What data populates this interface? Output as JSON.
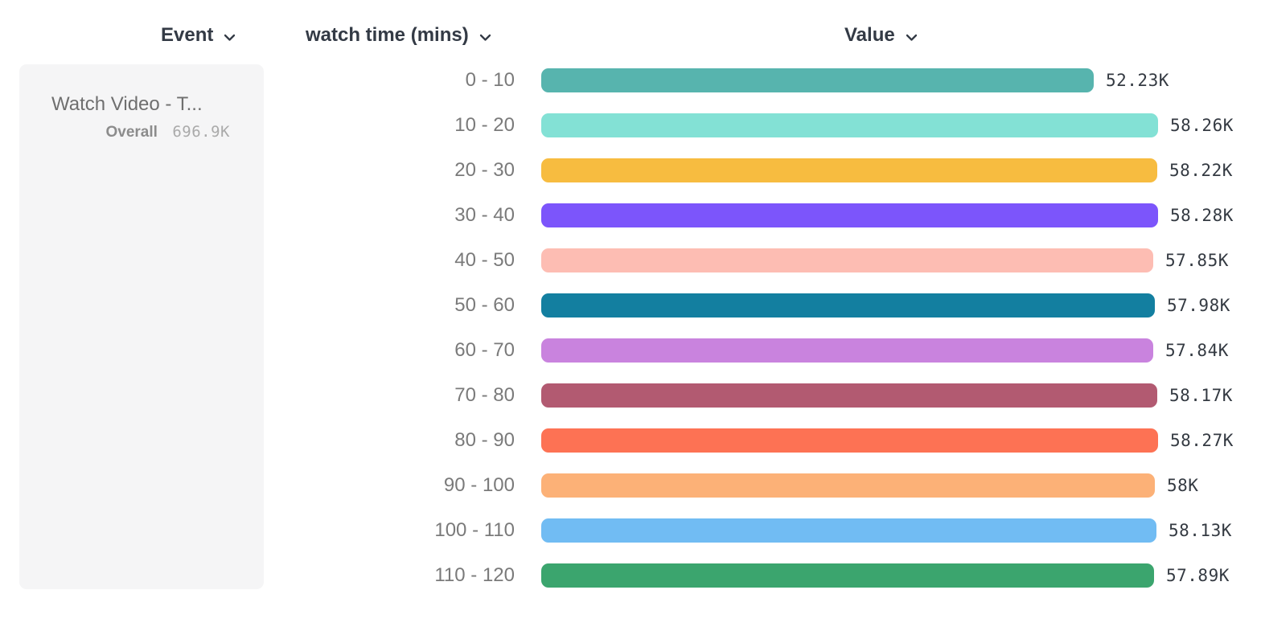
{
  "columns": {
    "event": {
      "label": "Event"
    },
    "breakdown": {
      "label": "watch time (mins)"
    },
    "value": {
      "label": "Value"
    }
  },
  "legend": {
    "event_title": "Watch Video - T...",
    "overall_label": "Overall",
    "overall_value": "696.9K"
  },
  "chart_data": {
    "type": "bar",
    "orientation": "horizontal",
    "title": "",
    "xlabel": "Value",
    "ylabel": "watch time (mins)",
    "categories": [
      "0 - 10",
      "10 - 20",
      "20 - 30",
      "30 - 40",
      "40 - 50",
      "50 - 60",
      "60 - 70",
      "70 - 80",
      "80 - 90",
      "90 - 100",
      "100 - 110",
      "110 - 120"
    ],
    "values": [
      52230,
      58260,
      58220,
      58280,
      57850,
      57980,
      57840,
      58170,
      58270,
      58000,
      58130,
      57890
    ],
    "value_labels": [
      "52.23K",
      "58.26K",
      "58.22K",
      "58.28K",
      "57.85K",
      "57.98K",
      "57.84K",
      "58.17K",
      "58.27K",
      "58K",
      "58.13K",
      "57.89K"
    ],
    "bar_colors": [
      "#57b4ae",
      "#83e1d5",
      "#f7bc40",
      "#7c55fb",
      "#fdbdb3",
      "#137fa0",
      "#c983de",
      "#b25a71",
      "#fd7254",
      "#fcb177",
      "#71bcf3",
      "#3ba56e"
    ],
    "overall_total": "696.9K",
    "xlim": [
      0,
      58280
    ],
    "grid": false,
    "legend_position": "left"
  },
  "icons": {
    "chevron_down": "chevron-down"
  },
  "colors": {
    "panel_bg": "#f5f5f6",
    "header_text": "#333a45",
    "bucket_label_text": "#7a7a7a",
    "value_text": "#343a42",
    "overall_label_text": "#8c8c8c",
    "overall_value_text": "#aaaaaa"
  }
}
